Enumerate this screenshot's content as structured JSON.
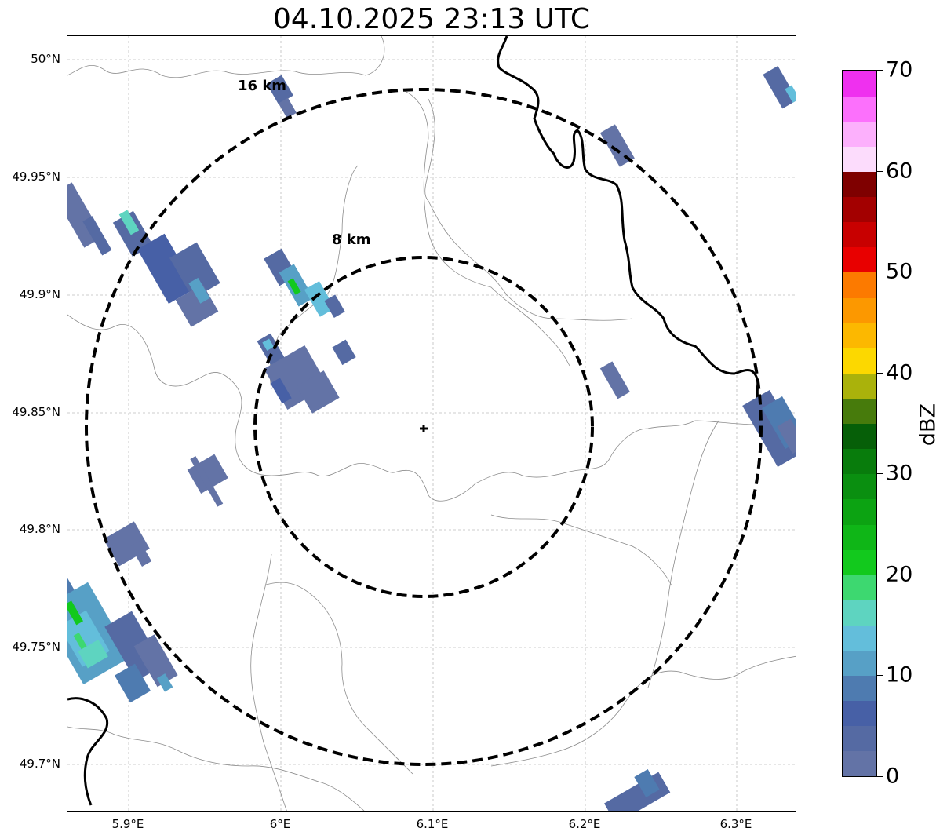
{
  "title": "04.10.2025 23:13 UTC",
  "lat_labels": [
    "50°N",
    "49.95°N",
    "49.9°N",
    "49.85°N",
    "49.8°N",
    "49.75°N",
    "49.7°N"
  ],
  "lon_labels": [
    "5.9°E",
    "6°E",
    "6.1°E",
    "6.2°E",
    "6.3°E"
  ],
  "rings": {
    "inner_label": "8 km",
    "outer_label": "16 km"
  },
  "colorbar": {
    "title": "dBZ",
    "tick_labels": [
      "0",
      "10",
      "20",
      "30",
      "40",
      "50",
      "60",
      "70"
    ],
    "range": [
      0,
      70
    ],
    "colors": [
      "#6373a6",
      "#556aa3",
      "#4760a6",
      "#4e7bb0",
      "#57a0c6",
      "#63bedb",
      "#5ed4c0",
      "#3dd870",
      "#12c91d",
      "#0fb617",
      "#0ca312",
      "#0a8f10",
      "#087c0c",
      "#065f08",
      "#477b0c",
      "#aab20b",
      "#fcd800",
      "#fcb800",
      "#fc9800",
      "#fc7a00",
      "#e80000",
      "#c80000",
      "#a30000",
      "#7f0000",
      "#fcdcfc",
      "#fcb0fc",
      "#fc70fc",
      "#ef30ef"
    ]
  },
  "radar_site": {
    "symbol": "+"
  }
}
